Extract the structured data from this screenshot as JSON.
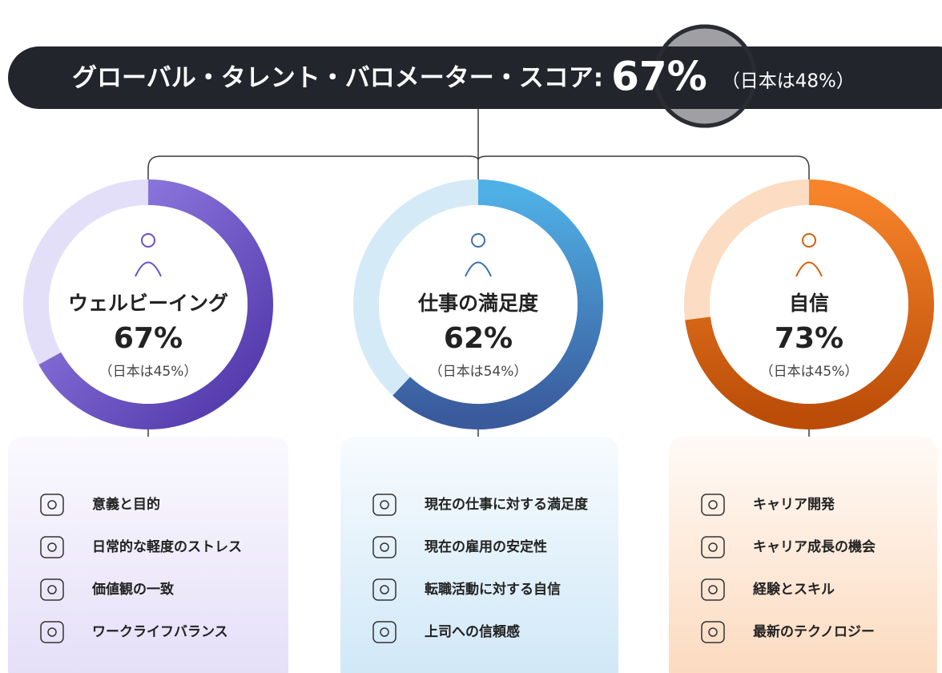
{
  "header": {
    "title": "グローバル・タレント・バロメーター・スコア:",
    "score": "67%",
    "japan": "（日本は48%）"
  },
  "pillars": [
    {
      "name": "ウェルビーイング",
      "value": 67,
      "value_label": "67%",
      "japan": "（日本は45%）",
      "items": [
        "意義と目的",
        "日常的な軽度のストレス",
        "価値観の一致",
        "ワークライフバランス"
      ]
    },
    {
      "name": "仕事の満足度",
      "value": 62,
      "value_label": "62%",
      "japan": "（日本は54%）",
      "items": [
        "現在の仕事に対する満足度",
        "現在の雇用の安定性",
        "転職活動に対する自信",
        "上司への信頼感"
      ]
    },
    {
      "name": "自信",
      "value": 73,
      "value_label": "73%",
      "japan": "（日本は45%）",
      "items": [
        "キャリア開発",
        "キャリア成長の機会",
        "経験とスキル",
        "最新のテクノロジー"
      ]
    }
  ]
}
